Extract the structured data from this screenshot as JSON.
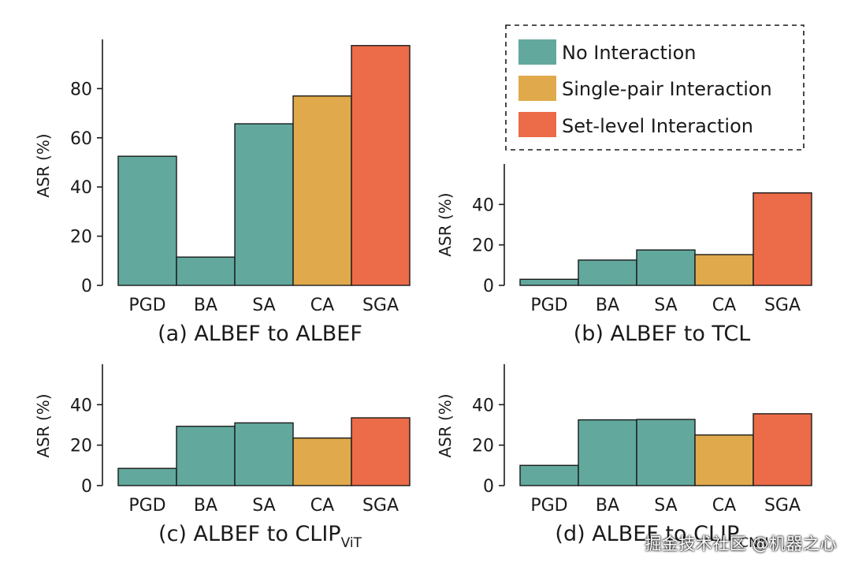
{
  "legend": {
    "items": [
      {
        "label": "No Interaction",
        "color": "#62a89d"
      },
      {
        "label": "Single-pair Interaction",
        "color": "#e0aa4c"
      },
      {
        "label": "Set-level Interaction",
        "color": "#ec6b48"
      }
    ]
  },
  "watermark": "掘金技术社区 @机器之心",
  "chart_data": [
    {
      "type": "bar",
      "title": "(a) ALBEF to ALBEF",
      "title_sub": "",
      "ylabel": "ASR (%)",
      "xlabel": "",
      "categories": [
        "PGD",
        "BA",
        "SA",
        "CA",
        "SGA"
      ],
      "values": [
        52.5,
        11.5,
        65.7,
        77.0,
        97.5
      ],
      "groups": [
        "No Interaction",
        "No Interaction",
        "No Interaction",
        "Single-pair Interaction",
        "Set-level Interaction"
      ],
      "yticks": [
        0,
        20,
        40,
        60,
        80
      ],
      "ylim": [
        0,
        100
      ]
    },
    {
      "type": "bar",
      "title": "(b) ALBEF to TCL",
      "title_sub": "",
      "ylabel": "ASR (%)",
      "xlabel": "",
      "categories": [
        "PGD",
        "BA",
        "SA",
        "CA",
        "SGA"
      ],
      "values": [
        3.0,
        12.5,
        17.5,
        15.2,
        45.7
      ],
      "groups": [
        "No Interaction",
        "No Interaction",
        "No Interaction",
        "Single-pair Interaction",
        "Set-level Interaction"
      ],
      "yticks": [
        0,
        20,
        40
      ],
      "ylim": [
        0,
        60
      ]
    },
    {
      "type": "bar",
      "title": "(c) ALBEF to CLIP",
      "title_sub": "ViT",
      "ylabel": "ASR (%)",
      "xlabel": "",
      "categories": [
        "PGD",
        "BA",
        "SA",
        "CA",
        "SGA"
      ],
      "values": [
        8.5,
        29.3,
        31.0,
        23.5,
        33.5
      ],
      "groups": [
        "No Interaction",
        "No Interaction",
        "No Interaction",
        "Single-pair Interaction",
        "Set-level Interaction"
      ],
      "yticks": [
        0,
        20,
        40
      ],
      "ylim": [
        0,
        60
      ]
    },
    {
      "type": "bar",
      "title": "(d) ALBEF to CLIP",
      "title_sub": "CNN",
      "ylabel": "ASR (%)",
      "xlabel": "",
      "categories": [
        "PGD",
        "BA",
        "SA",
        "CA",
        "SGA"
      ],
      "values": [
        10.0,
        32.5,
        32.7,
        25.0,
        35.5
      ],
      "groups": [
        "No Interaction",
        "No Interaction",
        "No Interaction",
        "Single-pair Interaction",
        "Set-level Interaction"
      ],
      "yticks": [
        0,
        20,
        40
      ],
      "ylim": [
        0,
        60
      ]
    }
  ]
}
